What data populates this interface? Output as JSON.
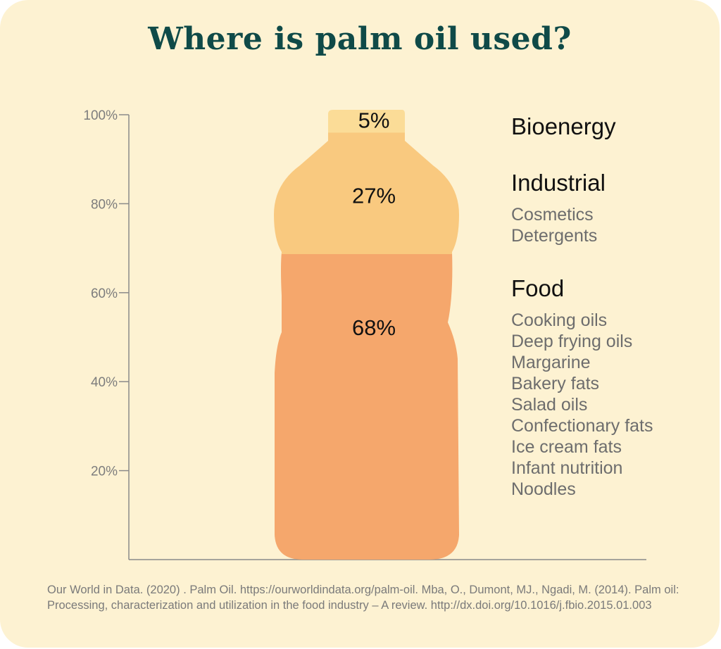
{
  "title": "Where is palm oil used?",
  "chart_data": {
    "type": "bar",
    "stacked": true,
    "shape": "bottle",
    "categories": [
      "Food",
      "Industrial",
      "Bioenergy"
    ],
    "values": [
      68,
      27,
      5
    ],
    "value_labels": [
      "68%",
      "27%",
      "5%"
    ],
    "colors": [
      "#f5a76c",
      "#f9c97f",
      "#fbdc97"
    ],
    "ylim": [
      0,
      100
    ],
    "yticks": [
      20,
      40,
      60,
      80,
      100
    ],
    "ytick_labels": [
      "20%",
      "40%",
      "60%",
      "80%",
      "100%"
    ],
    "grid": false
  },
  "legend": {
    "bioenergy": {
      "heading": "Bioenergy",
      "items": []
    },
    "industrial": {
      "heading": "Industrial",
      "items": [
        "Cosmetics",
        "Detergents"
      ]
    },
    "food": {
      "heading": "Food",
      "items": [
        "Cooking oils",
        "Deep frying oils",
        "Margarine",
        "Bakery fats",
        "Salad oils",
        "Confectionary fats",
        "Ice cream fats",
        "Infant nutrition",
        "Noodles"
      ]
    }
  },
  "source": "Our World in Data. (2020) . Palm Oil. https://ourworldindata.org/palm-oil.  Mba, O., Dumont, MJ., Ngadi, M. (2014). Palm oil: Processing, characterization and utilization in the food industry – A review. http://dx.doi.org/10.1016/j.fbio.2015.01.003",
  "colors": {
    "background": "#fdf2d2",
    "title": "#0f4a48",
    "axis": "#8a8a8a"
  }
}
